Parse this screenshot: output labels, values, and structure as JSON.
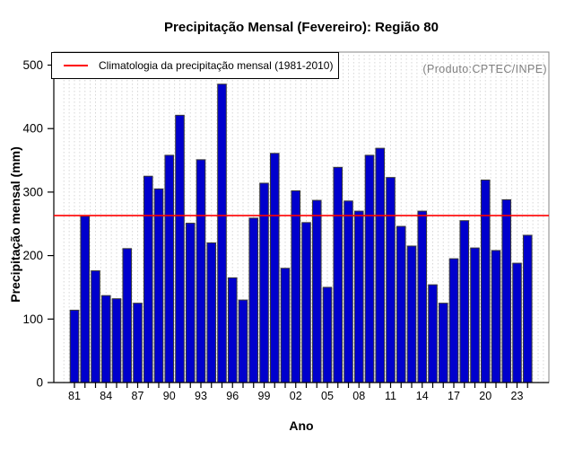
{
  "chart_data": {
    "type": "bar",
    "title": "Precipitação Mensal (Fevereiro): Região 80",
    "xlabel": "Ano",
    "ylabel": "Precipitação mensal (mm)",
    "annotation": "(Produto:CPTEC/INPE)",
    "legend_label": "Climatologia da precipitação mensal (1981-2010)",
    "legend_position": "top-left",
    "grid": "vertical-dashed",
    "ylim": [
      0,
      500
    ],
    "y_ticks": [
      0,
      100,
      200,
      300,
      400,
      500
    ],
    "x_tick_labels": [
      "81",
      "84",
      "87",
      "90",
      "93",
      "96",
      "99",
      "02",
      "05",
      "08",
      "11",
      "14",
      "17",
      "20",
      "23"
    ],
    "years": [
      1981,
      1982,
      1983,
      1984,
      1985,
      1986,
      1987,
      1988,
      1989,
      1990,
      1991,
      1992,
      1993,
      1994,
      1995,
      1996,
      1997,
      1998,
      1999,
      2000,
      2001,
      2002,
      2003,
      2004,
      2005,
      2006,
      2007,
      2008,
      2009,
      2010,
      2011,
      2012,
      2013,
      2014,
      2015,
      2016,
      2017,
      2018,
      2019,
      2020,
      2021,
      2022,
      2023,
      2024
    ],
    "values": [
      114,
      262,
      176,
      137,
      132,
      211,
      125,
      325,
      305,
      358,
      421,
      251,
      351,
      220,
      470,
      165,
      130,
      259,
      314,
      361,
      180,
      302,
      252,
      287,
      150,
      339,
      286,
      270,
      358,
      369,
      323,
      246,
      215,
      270,
      154,
      125,
      195,
      255,
      212,
      319,
      208,
      288,
      188,
      232
    ],
    "climatology_value": 263,
    "colors": {
      "bar": "#0000CD",
      "bar_border": "#3A3A3A",
      "climatology_line": "#FF0000",
      "grid": "#D6D6D6",
      "box": "#858585",
      "axis": "#000000",
      "annotation_text": "#808080"
    }
  }
}
